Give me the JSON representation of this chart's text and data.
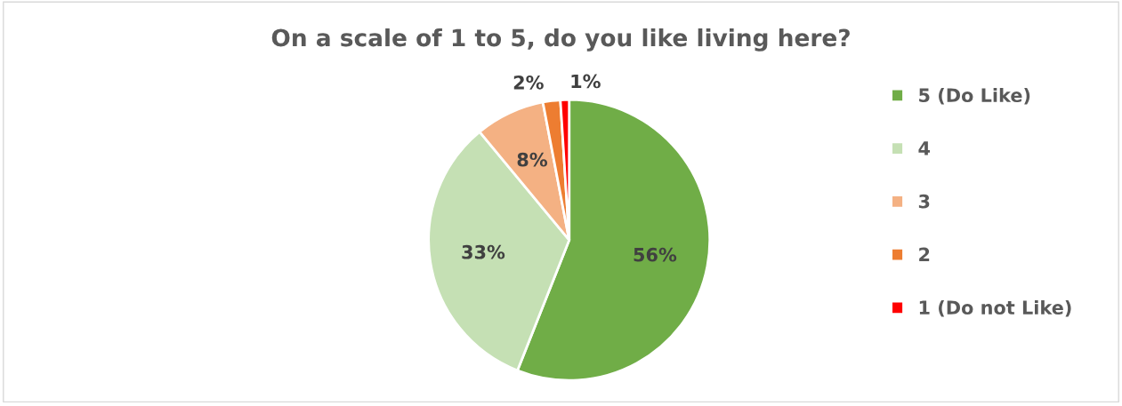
{
  "chart_data": {
    "type": "pie",
    "title": "On a scale of 1 to 5, do you like living here?",
    "categories": [
      "5 (Do Like)",
      "4",
      "3",
      "2",
      "1 (Do not Like)"
    ],
    "values": [
      56,
      33,
      8,
      2,
      1
    ],
    "colors": [
      "#70ad47",
      "#c5e0b4",
      "#f4b183",
      "#ed7d31",
      "#ff0000"
    ],
    "value_labels": [
      "56%",
      "33%",
      "8%",
      "2%",
      "1%"
    ],
    "legend": "right"
  }
}
